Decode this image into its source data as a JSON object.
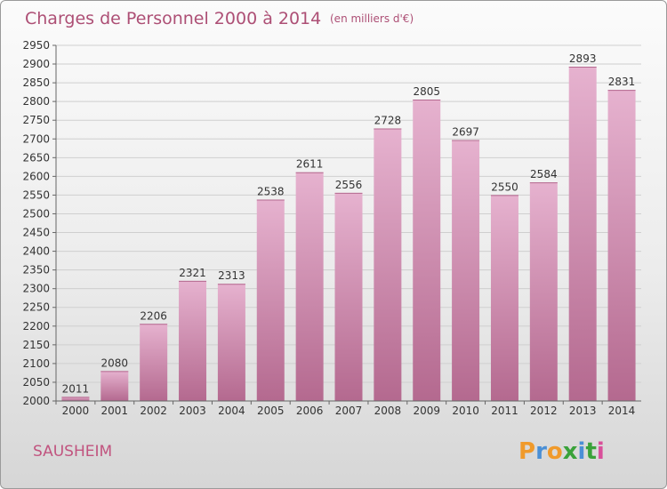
{
  "header": {
    "title": "Charges de Personnel 2000 à 2014",
    "unit": "(en milliers d'€)"
  },
  "footer": {
    "place": "SAUSHEIM",
    "logo": [
      "P",
      "r",
      "o",
      "x",
      "i",
      "t",
      "i"
    ]
  },
  "colors": {
    "bar_light": "#e6b2cf",
    "bar_dark": "#b4698f",
    "title": "#ad4f75",
    "logo": [
      "#f09a2b",
      "#4a8fd6",
      "#f09a2b",
      "#3aa23a",
      "#4a8fd6",
      "#3aa23a",
      "#d94f9a"
    ]
  },
  "chart_data": {
    "type": "bar",
    "categories": [
      "2000",
      "2001",
      "2002",
      "2003",
      "2004",
      "2005",
      "2006",
      "2007",
      "2008",
      "2009",
      "2010",
      "2011",
      "2012",
      "2013",
      "2014"
    ],
    "values": [
      2011,
      2080,
      2206,
      2321,
      2313,
      2538,
      2611,
      2556,
      2728,
      2805,
      2697,
      2550,
      2584,
      2893,
      2831
    ],
    "ylim": [
      2000,
      2950
    ],
    "yticks": [
      2000,
      2050,
      2100,
      2150,
      2200,
      2250,
      2300,
      2350,
      2400,
      2450,
      2500,
      2550,
      2600,
      2650,
      2700,
      2750,
      2800,
      2850,
      2900,
      2950
    ],
    "grid": true,
    "legend": "none"
  }
}
